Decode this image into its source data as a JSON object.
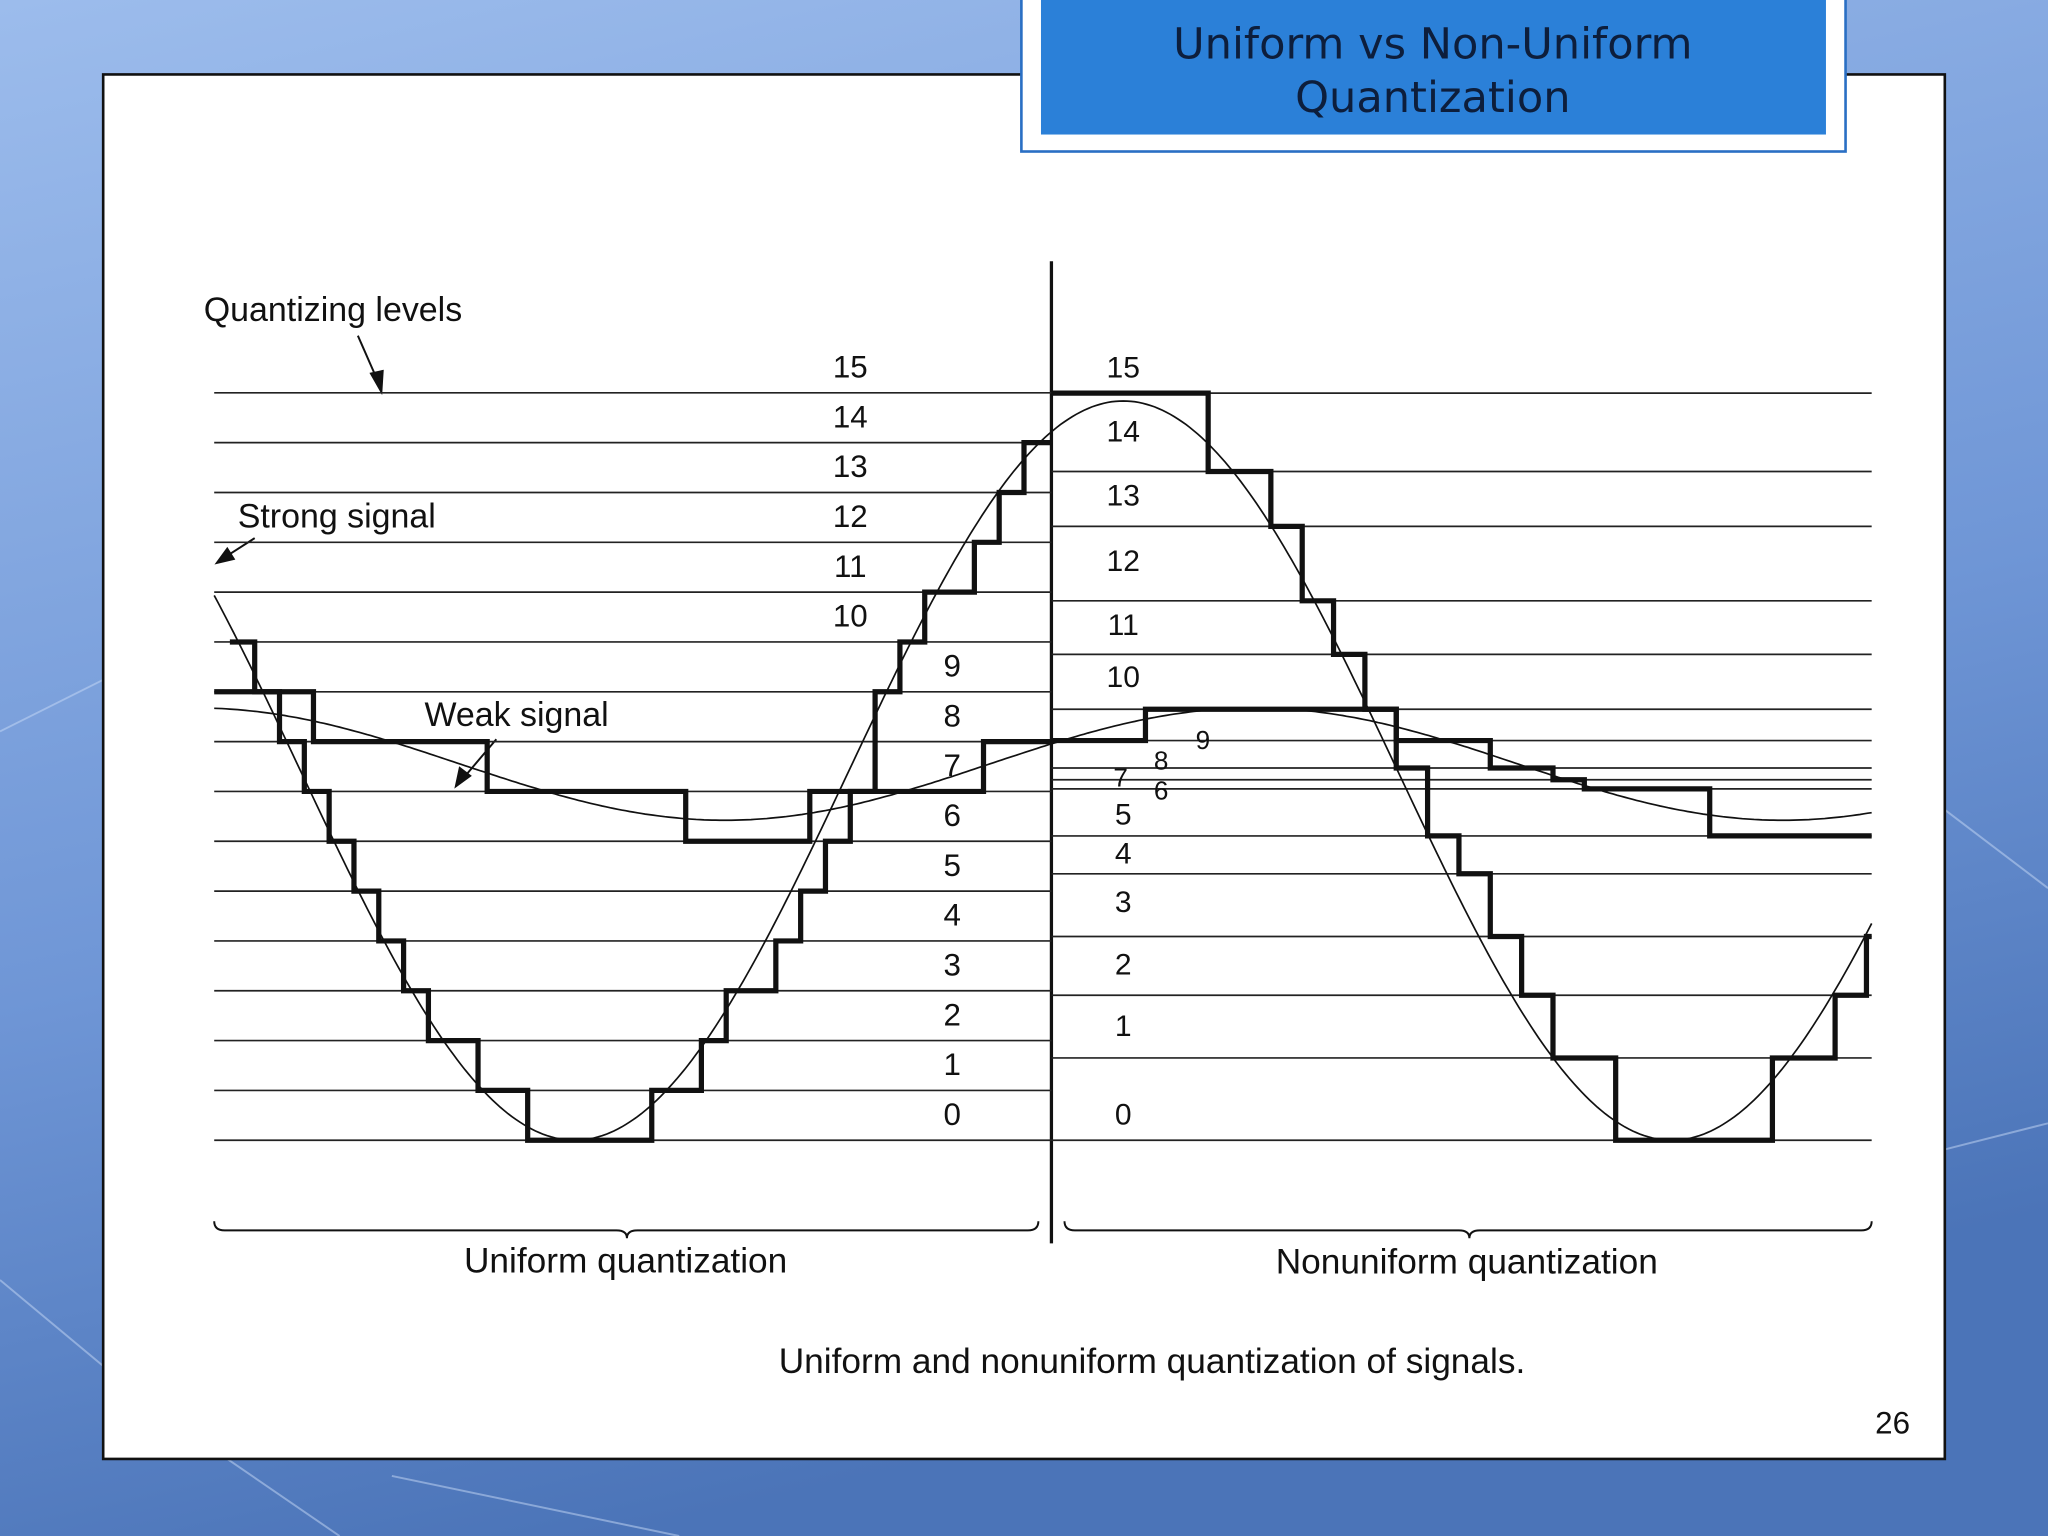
{
  "header": {
    "title_lines": [
      "Uniform vs Non-Uniform",
      "Quantization"
    ]
  },
  "annotations": {
    "quantizing_levels": "Quantizing levels",
    "strong_signal": "Strong signal",
    "weak_signal": "Weak signal"
  },
  "uniform_levels": [
    0,
    1,
    2,
    3,
    4,
    5,
    6,
    7,
    8,
    9,
    10,
    11,
    12,
    13,
    14,
    15
  ],
  "nonuniform_levels": [
    0,
    1,
    2,
    3,
    4,
    5,
    6,
    7,
    8,
    9,
    10,
    11,
    12,
    13,
    14,
    15
  ],
  "sections": {
    "uniform": "Uniform quantization",
    "nonuniform": "Nonuniform quantization"
  },
  "caption": "Uniform and nonuniform quantization of signals.",
  "page_number": "26"
}
